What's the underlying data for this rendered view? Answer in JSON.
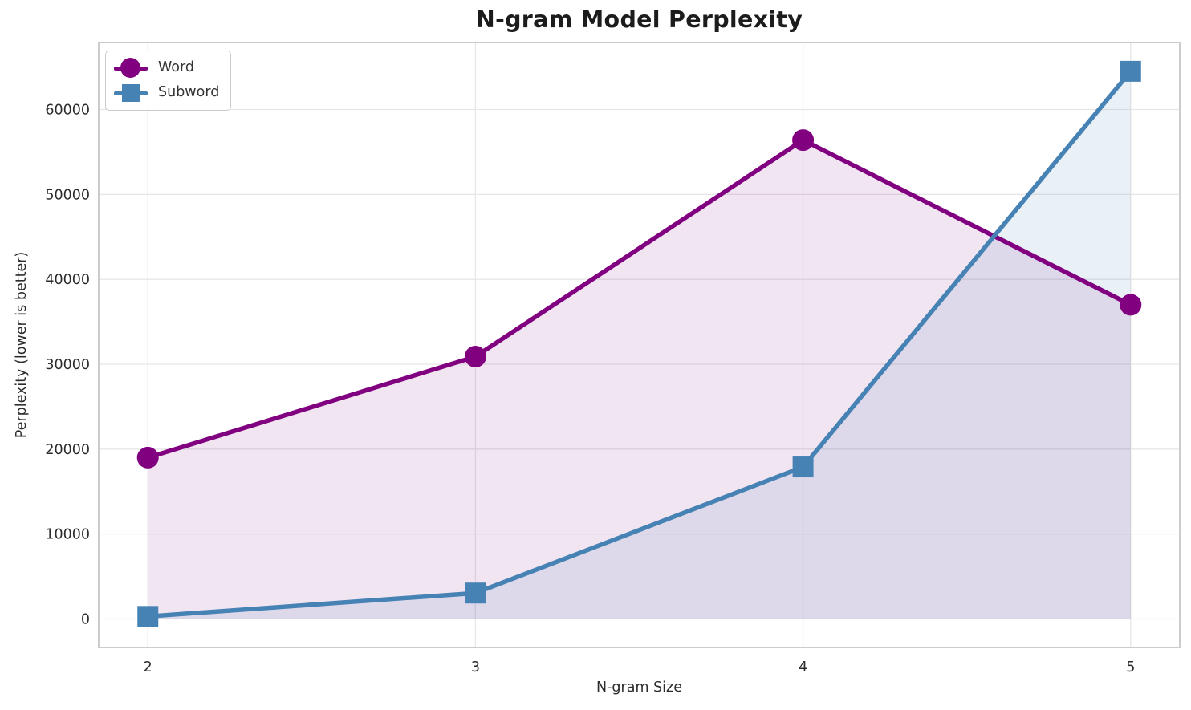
{
  "chart_data": {
    "type": "line",
    "title": "N-gram Model Perplexity",
    "xlabel": "N-gram Size",
    "ylabel": "Perplexity (lower is better)",
    "x": [
      2,
      3,
      4,
      5
    ],
    "series": [
      {
        "name": "Word",
        "values": [
          19000,
          30900,
          56400,
          37000
        ],
        "color": "#800080",
        "marker": "circle"
      },
      {
        "name": "Subword",
        "values": [
          300,
          3050,
          17900,
          64500
        ],
        "color": "#4682B4",
        "marker": "square"
      }
    ],
    "xticks": [
      2,
      3,
      4,
      5
    ],
    "xtick_labels": [
      "2",
      "3",
      "4",
      "5"
    ],
    "yticks": [
      0,
      10000,
      20000,
      30000,
      40000,
      50000,
      60000
    ],
    "ytick_labels": [
      "0",
      "10000",
      "20000",
      "30000",
      "40000",
      "50000",
      "60000"
    ],
    "xlim": [
      1.85,
      5.15
    ],
    "ylim": [
      -3355,
      67890
    ],
    "grid": true,
    "legend_position": "upper left",
    "fill_to_zero": true,
    "fill_opacity": 0.1,
    "grid_color": "#e7e7e7",
    "spine_color": "#cccccc",
    "text_color": "#2b2b2b"
  }
}
